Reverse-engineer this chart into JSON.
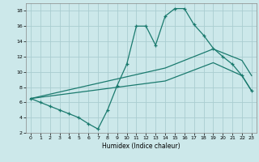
{
  "xlabel": "Humidex (Indice chaleur)",
  "background_color": "#cce8ea",
  "grid_color": "#aacdd0",
  "line_color": "#1a7a6e",
  "xlim": [
    -0.5,
    23.5
  ],
  "ylim": [
    2,
    19
  ],
  "xticks": [
    0,
    1,
    2,
    3,
    4,
    5,
    6,
    7,
    8,
    9,
    10,
    11,
    12,
    13,
    14,
    15,
    16,
    17,
    18,
    19,
    20,
    21,
    22,
    23
  ],
  "yticks": [
    2,
    4,
    6,
    8,
    10,
    12,
    14,
    16,
    18
  ],
  "line1_x": [
    0,
    1,
    2,
    3,
    4,
    5,
    6,
    7,
    8,
    9,
    10,
    11,
    12,
    13,
    14,
    15,
    16,
    17,
    18,
    19,
    20,
    21,
    22,
    23
  ],
  "line1_y": [
    6.5,
    6.0,
    5.5,
    5.0,
    4.5,
    4.0,
    3.2,
    2.5,
    5.0,
    8.2,
    11.0,
    16.0,
    16.0,
    13.5,
    17.3,
    18.3,
    18.3,
    16.2,
    14.8,
    13.1,
    12.0,
    11.0,
    9.5,
    7.5
  ],
  "line2_x": [
    0,
    14,
    19,
    22,
    23
  ],
  "line2_y": [
    6.5,
    10.5,
    13.0,
    11.5,
    9.5
  ],
  "line3_x": [
    0,
    14,
    19,
    22,
    23
  ],
  "line3_y": [
    6.5,
    8.8,
    11.2,
    9.5,
    7.5
  ],
  "marker_indices": [
    0,
    1,
    2,
    3,
    4,
    5,
    6,
    7,
    8,
    9,
    10,
    11,
    12,
    13,
    14,
    15,
    16,
    17,
    18,
    19,
    20,
    21,
    22,
    23
  ]
}
